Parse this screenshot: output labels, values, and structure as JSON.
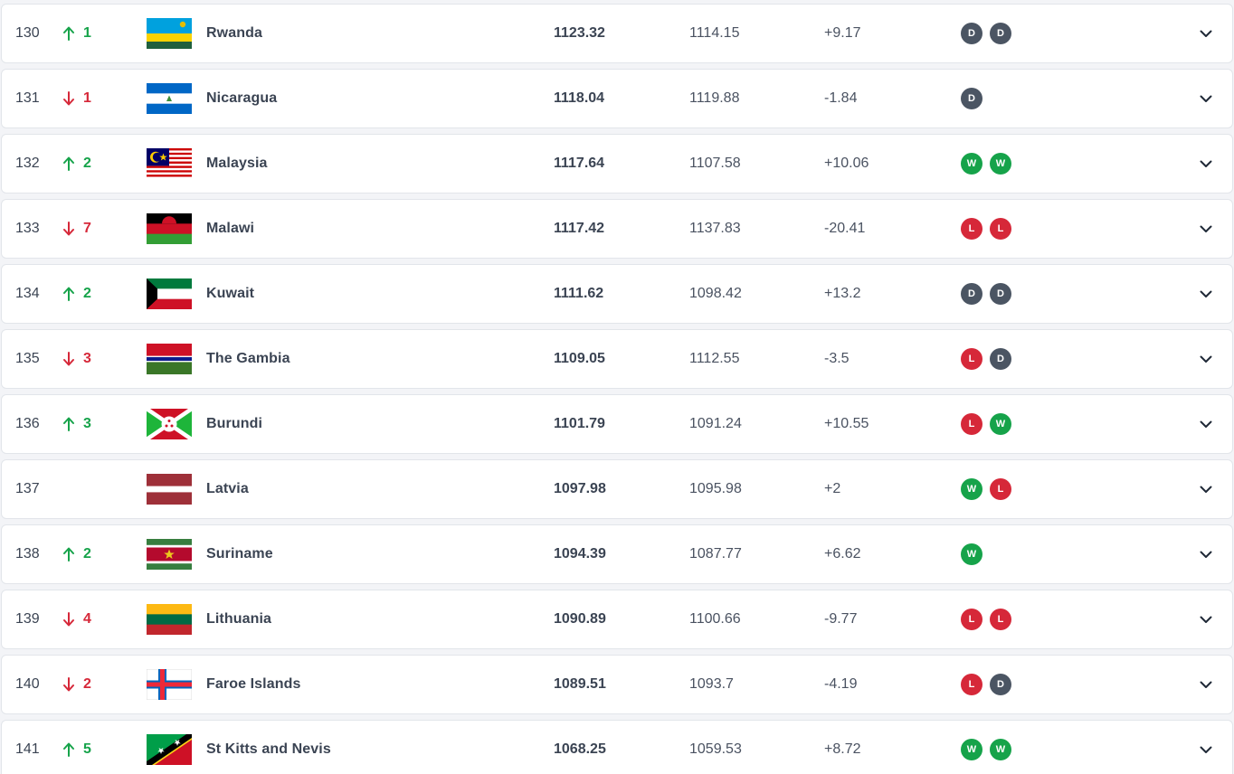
{
  "rows": [
    {
      "rank": "130",
      "movement": {
        "dir": "up",
        "value": "1"
      },
      "flag_icon": "flag-rwanda-icon",
      "country": "Rwanda",
      "total_points": "1123.32",
      "previous_points": "1114.15",
      "difference": "+9.17",
      "recent_results": [
        "D",
        "D"
      ]
    },
    {
      "rank": "131",
      "movement": {
        "dir": "down",
        "value": "1"
      },
      "flag_icon": "flag-nicaragua-icon",
      "country": "Nicaragua",
      "total_points": "1118.04",
      "previous_points": "1119.88",
      "difference": "-1.84",
      "recent_results": [
        "D"
      ]
    },
    {
      "rank": "132",
      "movement": {
        "dir": "up",
        "value": "2"
      },
      "flag_icon": "flag-malaysia-icon",
      "country": "Malaysia",
      "total_points": "1117.64",
      "previous_points": "1107.58",
      "difference": "+10.06",
      "recent_results": [
        "W",
        "W"
      ]
    },
    {
      "rank": "133",
      "movement": {
        "dir": "down",
        "value": "7"
      },
      "flag_icon": "flag-malawi-icon",
      "country": "Malawi",
      "total_points": "1117.42",
      "previous_points": "1137.83",
      "difference": "-20.41",
      "recent_results": [
        "L",
        "L"
      ]
    },
    {
      "rank": "134",
      "movement": {
        "dir": "up",
        "value": "2"
      },
      "flag_icon": "flag-kuwait-icon",
      "country": "Kuwait",
      "total_points": "1111.62",
      "previous_points": "1098.42",
      "difference": "+13.2",
      "recent_results": [
        "D",
        "D"
      ]
    },
    {
      "rank": "135",
      "movement": {
        "dir": "down",
        "value": "3"
      },
      "flag_icon": "flag-gambia-icon",
      "country": "The Gambia",
      "total_points": "1109.05",
      "previous_points": "1112.55",
      "difference": "-3.5",
      "recent_results": [
        "L",
        "D"
      ]
    },
    {
      "rank": "136",
      "movement": {
        "dir": "up",
        "value": "3"
      },
      "flag_icon": "flag-burundi-icon",
      "country": "Burundi",
      "total_points": "1101.79",
      "previous_points": "1091.24",
      "difference": "+10.55",
      "recent_results": [
        "L",
        "W"
      ]
    },
    {
      "rank": "137",
      "movement": {
        "dir": "none",
        "value": ""
      },
      "flag_icon": "flag-latvia-icon",
      "country": "Latvia",
      "total_points": "1097.98",
      "previous_points": "1095.98",
      "difference": "+2",
      "recent_results": [
        "W",
        "L"
      ]
    },
    {
      "rank": "138",
      "movement": {
        "dir": "up",
        "value": "2"
      },
      "flag_icon": "flag-suriname-icon",
      "country": "Suriname",
      "total_points": "1094.39",
      "previous_points": "1087.77",
      "difference": "+6.62",
      "recent_results": [
        "W"
      ]
    },
    {
      "rank": "139",
      "movement": {
        "dir": "down",
        "value": "4"
      },
      "flag_icon": "flag-lithuania-icon",
      "country": "Lithuania",
      "total_points": "1090.89",
      "previous_points": "1100.66",
      "difference": "-9.77",
      "recent_results": [
        "L",
        "L"
      ]
    },
    {
      "rank": "140",
      "movement": {
        "dir": "down",
        "value": "2"
      },
      "flag_icon": "flag-faroe-islands-icon",
      "country": "Faroe Islands",
      "total_points": "1089.51",
      "previous_points": "1093.7",
      "difference": "-4.19",
      "recent_results": [
        "L",
        "D"
      ]
    },
    {
      "rank": "141",
      "movement": {
        "dir": "up",
        "value": "5"
      },
      "flag_icon": "flag-st-kitts-and-nevis-icon",
      "country": "St Kitts and Nevis",
      "total_points": "1068.25",
      "previous_points": "1059.53",
      "difference": "+8.72",
      "recent_results": [
        "W",
        "W"
      ]
    }
  ],
  "icons": {
    "movement_up": "arrow-up-icon",
    "movement_down": "arrow-down-icon",
    "movement_none": "no-change-dot-icon",
    "expand": "chevron-down-icon"
  },
  "colors": {
    "up": "#16a34a",
    "down": "#d62839",
    "win": "#16a34a",
    "loss": "#d62839",
    "draw": "#4b5563"
  }
}
